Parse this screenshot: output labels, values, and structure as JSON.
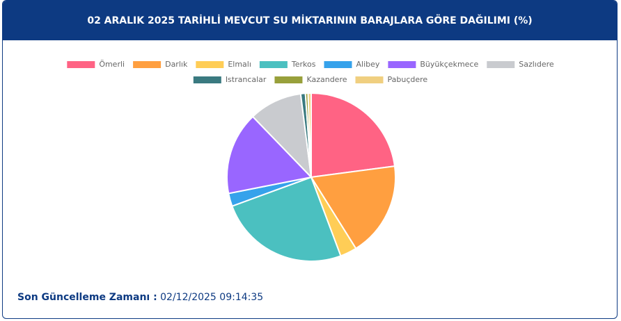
{
  "chart_data": {
    "type": "pie",
    "title": "02 ARALIK 2025 TARİHLİ MEVCUT SU MİKTARININ BARAJLARA GÖRE DAĞILIMI (%)",
    "categories": [
      "Ömerli",
      "Darlık",
      "Elmalı",
      "Terkos",
      "Alibey",
      "Büyükçekmece",
      "Sazlıdere",
      "Istrancalar",
      "Kazandere",
      "Pabuçdere"
    ],
    "values": [
      22.9,
      18.2,
      3.2,
      25.1,
      2.5,
      15.9,
      10.2,
      0.9,
      0.5,
      0.6
    ],
    "colors": [
      "#ff6384",
      "#ff9f40",
      "#ffcd56",
      "#4bc0c0",
      "#36a2eb",
      "#9966ff",
      "#c9cbcf",
      "#3a7a80",
      "#98a03b",
      "#f0cf80"
    ],
    "legend": "top"
  },
  "footer": {
    "label": "Son Güncelleme Zamanı :",
    "time": "02/12/2025 09:14:35"
  }
}
